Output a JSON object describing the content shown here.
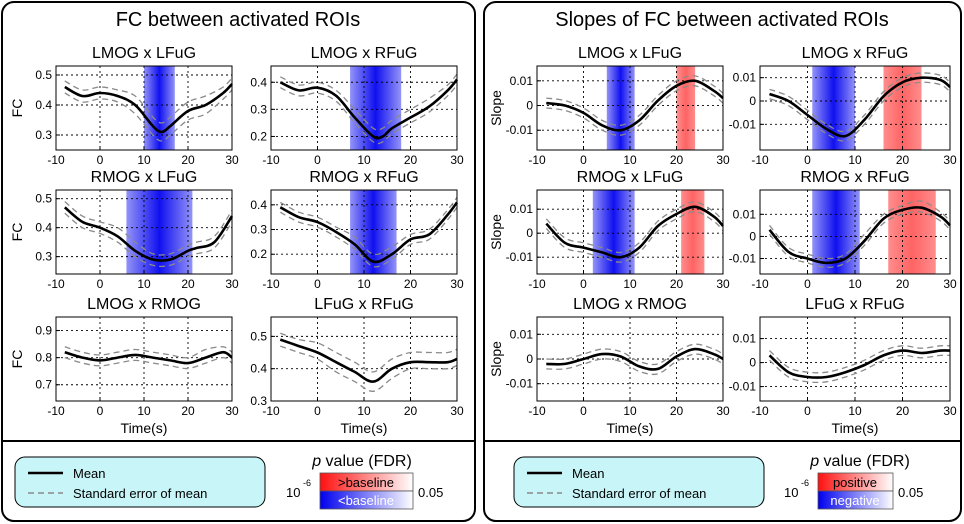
{
  "figure": {
    "left_title": "FC between activated ROIs",
    "right_title": "Slopes of FC between activated ROIs",
    "x_label": "Time(s)",
    "x_ticks": [
      "-10",
      "0",
      "10",
      "20",
      "30"
    ],
    "y_label_fc": "FC",
    "y_label_slope": "Slope"
  },
  "legend_left": {
    "mean_label": "Mean",
    "sem_label": "Standard error of mean",
    "pvalue_prefix": "p",
    "pvalue_suffix": " value (FDR)",
    "scale_min": "10",
    "scale_min_exp": "-6",
    "scale_max": "0.05",
    "upper_label": ">baseline",
    "lower_label": "<baseline"
  },
  "legend_right": {
    "mean_label": "Mean",
    "sem_label": "Standard error of mean",
    "pvalue_prefix": "p",
    "pvalue_suffix": " value (FDR)",
    "scale_min": "10",
    "scale_min_exp": "-6",
    "scale_max": "0.05",
    "upper_label": "positive",
    "lower_label": "negative"
  },
  "colors": {
    "positive": "#ff3030",
    "negative": "#1010f0",
    "legend_bg": "#c8f5f8",
    "mean": "#000000",
    "sem": "#8a8a8a"
  },
  "chart_data": [
    {
      "type": "line",
      "title": "LMOG x LFuG",
      "ylabel": "FC",
      "xlim": [
        -10,
        30
      ],
      "ylim": [
        0.25,
        0.53
      ],
      "yticks": [
        0.3,
        0.4,
        0.5
      ],
      "x": [
        -8,
        -4,
        0,
        4,
        8,
        12,
        14,
        16,
        20,
        24,
        28,
        30
      ],
      "mean": [
        0.46,
        0.43,
        0.44,
        0.43,
        0.4,
        0.33,
        0.31,
        0.33,
        0.38,
        0.4,
        0.44,
        0.47
      ],
      "sem_upper": [
        0.48,
        0.45,
        0.46,
        0.45,
        0.43,
        0.36,
        0.34,
        0.36,
        0.41,
        0.43,
        0.46,
        0.49
      ],
      "sem_lower": [
        0.44,
        0.41,
        0.42,
        0.41,
        0.37,
        0.3,
        0.28,
        0.3,
        0.35,
        0.37,
        0.42,
        0.45
      ],
      "bands": [
        {
          "type": "negative",
          "start": 10,
          "end": 17
        }
      ]
    },
    {
      "type": "line",
      "title": "LMOG x RFuG",
      "ylabel": "",
      "xlim": [
        -10,
        30
      ],
      "ylim": [
        0.15,
        0.46
      ],
      "yticks": [
        0.2,
        0.3,
        0.4
      ],
      "x": [
        -8,
        -4,
        0,
        4,
        8,
        12,
        14,
        16,
        20,
        24,
        28,
        30
      ],
      "mean": [
        0.4,
        0.37,
        0.38,
        0.35,
        0.27,
        0.2,
        0.2,
        0.23,
        0.27,
        0.31,
        0.37,
        0.41
      ],
      "sem_upper": [
        0.42,
        0.39,
        0.4,
        0.37,
        0.3,
        0.23,
        0.23,
        0.26,
        0.3,
        0.34,
        0.39,
        0.43
      ],
      "sem_lower": [
        0.38,
        0.35,
        0.36,
        0.33,
        0.25,
        0.18,
        0.18,
        0.21,
        0.25,
        0.29,
        0.35,
        0.39
      ],
      "bands": [
        {
          "type": "negative",
          "start": 7,
          "end": 18
        }
      ]
    },
    {
      "type": "line",
      "title": "RMOG x LFuG",
      "ylabel": "FC",
      "xlim": [
        -10,
        30
      ],
      "ylim": [
        0.24,
        0.53
      ],
      "yticks": [
        0.3,
        0.4,
        0.5
      ],
      "x": [
        -8,
        -4,
        0,
        4,
        8,
        12,
        16,
        20,
        22,
        26,
        30
      ],
      "mean": [
        0.47,
        0.42,
        0.4,
        0.37,
        0.32,
        0.29,
        0.29,
        0.32,
        0.33,
        0.35,
        0.44
      ],
      "sem_upper": [
        0.49,
        0.44,
        0.42,
        0.4,
        0.35,
        0.31,
        0.31,
        0.34,
        0.35,
        0.37,
        0.46
      ],
      "sem_lower": [
        0.45,
        0.4,
        0.38,
        0.35,
        0.3,
        0.27,
        0.27,
        0.3,
        0.31,
        0.33,
        0.42
      ],
      "bands": [
        {
          "type": "negative",
          "start": 6,
          "end": 21
        }
      ]
    },
    {
      "type": "line",
      "title": "RMOG x RFuG",
      "ylabel": "",
      "xlim": [
        -10,
        30
      ],
      "ylim": [
        0.12,
        0.46
      ],
      "yticks": [
        0.2,
        0.3,
        0.4
      ],
      "x": [
        -8,
        -4,
        0,
        4,
        8,
        12,
        16,
        20,
        24,
        28,
        30
      ],
      "mean": [
        0.39,
        0.35,
        0.33,
        0.29,
        0.24,
        0.17,
        0.2,
        0.26,
        0.28,
        0.36,
        0.41
      ],
      "sem_upper": [
        0.41,
        0.37,
        0.35,
        0.31,
        0.27,
        0.2,
        0.23,
        0.28,
        0.3,
        0.38,
        0.43
      ],
      "sem_lower": [
        0.37,
        0.33,
        0.31,
        0.27,
        0.22,
        0.15,
        0.18,
        0.24,
        0.26,
        0.34,
        0.39
      ],
      "bands": [
        {
          "type": "negative",
          "start": 7,
          "end": 17
        }
      ]
    },
    {
      "type": "line",
      "title": "LMOG x RMOG",
      "ylabel": "FC",
      "xlim": [
        -10,
        30
      ],
      "ylim": [
        0.64,
        0.95
      ],
      "yticks": [
        0.7,
        0.8,
        0.9
      ],
      "x": [
        -8,
        -4,
        0,
        4,
        8,
        12,
        16,
        20,
        24,
        28,
        30
      ],
      "mean": [
        0.82,
        0.8,
        0.79,
        0.8,
        0.81,
        0.8,
        0.79,
        0.78,
        0.8,
        0.82,
        0.8
      ],
      "sem_upper": [
        0.84,
        0.82,
        0.81,
        0.82,
        0.83,
        0.82,
        0.81,
        0.8,
        0.83,
        0.84,
        0.82
      ],
      "sem_lower": [
        0.8,
        0.78,
        0.77,
        0.78,
        0.79,
        0.78,
        0.77,
        0.76,
        0.78,
        0.8,
        0.78
      ],
      "bands": []
    },
    {
      "type": "line",
      "title": "LFuG x RFuG",
      "ylabel": "",
      "xlim": [
        -10,
        30
      ],
      "ylim": [
        0.3,
        0.56
      ],
      "yticks": [
        0.3,
        0.4,
        0.5
      ],
      "x": [
        -8,
        -4,
        0,
        4,
        8,
        12,
        16,
        20,
        24,
        28,
        30
      ],
      "mean": [
        0.49,
        0.47,
        0.45,
        0.42,
        0.39,
        0.36,
        0.4,
        0.42,
        0.42,
        0.42,
        0.43
      ],
      "sem_upper": [
        0.51,
        0.49,
        0.48,
        0.45,
        0.42,
        0.39,
        0.43,
        0.45,
        0.45,
        0.45,
        0.46
      ],
      "sem_lower": [
        0.47,
        0.45,
        0.43,
        0.39,
        0.36,
        0.33,
        0.37,
        0.4,
        0.4,
        0.4,
        0.41
      ],
      "bands": []
    },
    {
      "type": "line",
      "title": "LMOG x LFuG",
      "ylabel": "Slope",
      "xlim": [
        -10,
        30
      ],
      "ylim": [
        -0.018,
        0.016
      ],
      "yticks": [
        -0.01,
        0,
        0.01
      ],
      "x": [
        -8,
        -4,
        0,
        4,
        8,
        12,
        16,
        20,
        24,
        28,
        30
      ],
      "mean": [
        0.001,
        0.0,
        -0.003,
        -0.008,
        -0.01,
        -0.006,
        0.002,
        0.008,
        0.01,
        0.006,
        0.003
      ],
      "sem_upper": [
        0.003,
        0.002,
        -0.001,
        -0.006,
        -0.008,
        -0.004,
        0.004,
        0.01,
        0.012,
        0.008,
        0.005
      ],
      "sem_lower": [
        -0.001,
        -0.002,
        -0.005,
        -0.01,
        -0.012,
        -0.008,
        0.0,
        0.006,
        0.008,
        0.004,
        0.001
      ],
      "bands": [
        {
          "type": "negative",
          "start": 5,
          "end": 11
        },
        {
          "type": "positive",
          "start": 20,
          "end": 24
        }
      ]
    },
    {
      "type": "line",
      "title": "LMOG x RFuG",
      "ylabel": "",
      "xlim": [
        -10,
        30
      ],
      "ylim": [
        -0.021,
        0.015
      ],
      "yticks": [
        -0.01,
        0,
        0.01
      ],
      "x": [
        -8,
        -4,
        0,
        4,
        8,
        12,
        16,
        20,
        24,
        28,
        30
      ],
      "mean": [
        0.003,
        0.0,
        -0.006,
        -0.012,
        -0.015,
        -0.008,
        0.002,
        0.008,
        0.01,
        0.009,
        0.006
      ],
      "sem_upper": [
        0.005,
        0.002,
        -0.004,
        -0.01,
        -0.013,
        -0.006,
        0.004,
        0.01,
        0.012,
        0.011,
        0.008
      ],
      "sem_lower": [
        0.001,
        -0.002,
        -0.008,
        -0.014,
        -0.017,
        -0.01,
        0.0,
        0.006,
        0.008,
        0.007,
        0.004
      ],
      "bands": [
        {
          "type": "negative",
          "start": 1,
          "end": 10
        },
        {
          "type": "positive",
          "start": 16,
          "end": 24
        }
      ]
    },
    {
      "type": "line",
      "title": "RMOG x LFuG",
      "ylabel": "Slope",
      "xlim": [
        -10,
        30
      ],
      "ylim": [
        -0.017,
        0.018
      ],
      "yticks": [
        -0.01,
        0,
        0.01
      ],
      "x": [
        -8,
        -4,
        0,
        4,
        8,
        12,
        16,
        20,
        24,
        28,
        30
      ],
      "mean": [
        0.004,
        -0.004,
        -0.006,
        -0.008,
        -0.01,
        -0.006,
        0.003,
        0.008,
        0.011,
        0.007,
        0.003
      ],
      "sem_upper": [
        0.006,
        -0.002,
        -0.004,
        -0.006,
        -0.008,
        -0.004,
        0.005,
        0.01,
        0.013,
        0.009,
        0.005
      ],
      "sem_lower": [
        0.002,
        -0.006,
        -0.008,
        -0.01,
        -0.012,
        -0.008,
        0.001,
        0.006,
        0.009,
        0.005,
        0.001
      ],
      "bands": [
        {
          "type": "negative",
          "start": 2,
          "end": 11
        },
        {
          "type": "positive",
          "start": 21,
          "end": 26
        }
      ]
    },
    {
      "type": "line",
      "title": "RMOG x RFuG",
      "ylabel": "",
      "xlim": [
        -10,
        30
      ],
      "ylim": [
        -0.017,
        0.021
      ],
      "yticks": [
        -0.01,
        0,
        0.01
      ],
      "x": [
        -8,
        -4,
        0,
        4,
        8,
        12,
        16,
        20,
        24,
        28,
        30
      ],
      "mean": [
        0.003,
        -0.007,
        -0.01,
        -0.012,
        -0.01,
        -0.002,
        0.008,
        0.012,
        0.013,
        0.009,
        0.005
      ],
      "sem_upper": [
        0.005,
        -0.005,
        -0.008,
        -0.01,
        -0.008,
        0.001,
        0.01,
        0.014,
        0.016,
        0.011,
        0.007
      ],
      "sem_lower": [
        0.001,
        -0.009,
        -0.012,
        -0.014,
        -0.012,
        -0.004,
        0.006,
        0.01,
        0.011,
        0.007,
        0.003
      ],
      "bands": [
        {
          "type": "negative",
          "start": 1,
          "end": 11
        },
        {
          "type": "positive",
          "start": 17,
          "end": 27
        }
      ]
    },
    {
      "type": "line",
      "title": "LMOG x RMOG",
      "ylabel": "Slope",
      "xlim": [
        -10,
        30
      ],
      "ylim": [
        -0.017,
        0.017
      ],
      "yticks": [
        -0.01,
        0,
        0.01
      ],
      "x": [
        -8,
        -4,
        0,
        4,
        8,
        12,
        16,
        20,
        24,
        28,
        30
      ],
      "mean": [
        -0.002,
        -0.002,
        0.0,
        0.002,
        0.001,
        -0.003,
        -0.004,
        0.001,
        0.004,
        0.002,
        0.0
      ],
      "sem_upper": [
        0.0,
        0.0,
        0.002,
        0.004,
        0.003,
        -0.001,
        -0.002,
        0.003,
        0.006,
        0.004,
        0.002
      ],
      "sem_lower": [
        -0.004,
        -0.004,
        -0.002,
        0.0,
        -0.001,
        -0.005,
        -0.006,
        -0.001,
        0.002,
        0.0,
        -0.002
      ],
      "bands": []
    },
    {
      "type": "line",
      "title": "LFuG x RFuG",
      "ylabel": "",
      "xlim": [
        -10,
        30
      ],
      "ylim": [
        -0.016,
        0.019
      ],
      "yticks": [
        -0.01,
        0,
        0.01
      ],
      "x": [
        -8,
        -4,
        0,
        4,
        8,
        12,
        16,
        20,
        24,
        28,
        30
      ],
      "mean": [
        0.003,
        -0.004,
        -0.006,
        -0.006,
        -0.004,
        -0.001,
        0.003,
        0.005,
        0.004,
        0.005,
        0.005
      ],
      "sem_upper": [
        0.005,
        -0.002,
        -0.004,
        -0.004,
        -0.002,
        0.001,
        0.005,
        0.007,
        0.006,
        0.007,
        0.007
      ],
      "sem_lower": [
        0.001,
        -0.006,
        -0.008,
        -0.008,
        -0.006,
        -0.003,
        0.001,
        0.003,
        0.002,
        0.003,
        0.003
      ],
      "bands": []
    }
  ]
}
